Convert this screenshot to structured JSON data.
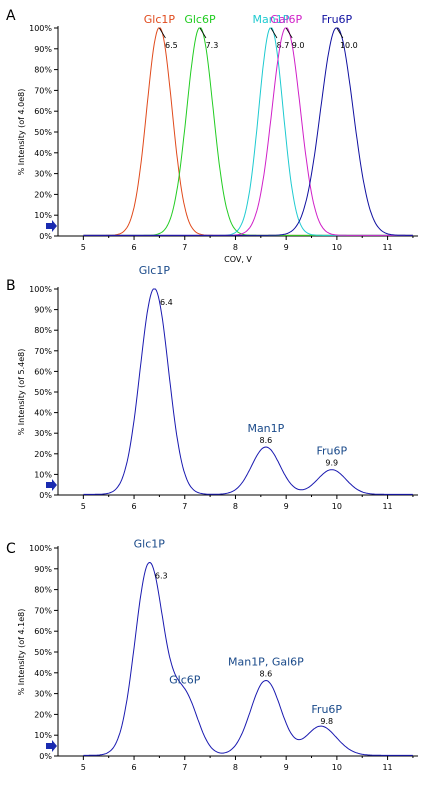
{
  "chart_data": [
    {
      "panel": "A",
      "type": "line",
      "ylabel": "% Intensity (of 4.0e8)",
      "xlabel": "COV, V",
      "xlim": [
        4.5,
        11.6
      ],
      "ylim": [
        0,
        100
      ],
      "xticks": [
        "5",
        "6",
        "7",
        "8",
        "9",
        "10",
        "11"
      ],
      "yticks": [
        "0%",
        "10%",
        "20%",
        "30%",
        "40%",
        "50%",
        "60%",
        "70%",
        "80%",
        "90%",
        "100%"
      ],
      "series": [
        {
          "name": "Glc1P",
          "color": "#e04a1c",
          "peak_x": 6.5,
          "peak_label": "6.5",
          "width": 0.25,
          "height": 100
        },
        {
          "name": "Glc6P",
          "color": "#22cc22",
          "peak_x": 7.3,
          "peak_label": "7.3",
          "width": 0.26,
          "height": 100
        },
        {
          "name": "Man1P",
          "color": "#1ecad0",
          "peak_x": 8.7,
          "peak_label": "8.7",
          "width": 0.24,
          "height": 100
        },
        {
          "name": "Gal6P",
          "color": "#d020c8",
          "peak_x": 9.0,
          "peak_label": "9.0",
          "width": 0.28,
          "height": 100
        },
        {
          "name": "Fru6P",
          "color": "#1010a0",
          "peak_x": 10.0,
          "peak_label": "10.0",
          "width": 0.32,
          "height": 100
        }
      ]
    },
    {
      "panel": "B",
      "type": "line",
      "ylabel": "% Intensity (of 5.4e8)",
      "xlabel": "",
      "xlim": [
        4.5,
        11.6
      ],
      "ylim": [
        0,
        100
      ],
      "xticks": [
        "5",
        "6",
        "7",
        "8",
        "9",
        "10",
        "11"
      ],
      "yticks": [
        "0%",
        "10%",
        "20%",
        "30%",
        "40%",
        "50%",
        "60%",
        "70%",
        "80%",
        "90%",
        "100%"
      ],
      "color": "#1a1ab0",
      "peaks": [
        {
          "name": "Glc1P",
          "x": 6.4,
          "label": "6.4",
          "height": 100,
          "width": 0.28
        },
        {
          "name": "Man1P",
          "x": 8.6,
          "label": "8.6",
          "height": 23,
          "width": 0.28
        },
        {
          "name": "Fru6P",
          "x": 9.9,
          "label": "9.9",
          "height": 12,
          "width": 0.28
        }
      ]
    },
    {
      "panel": "C",
      "type": "line",
      "ylabel": "% Intensity (of 4.1e8)",
      "xlabel": "",
      "xlim": [
        4.5,
        11.6
      ],
      "ylim": [
        0,
        100
      ],
      "xticks": [
        "5",
        "6",
        "7",
        "8",
        "9",
        "10",
        "11"
      ],
      "yticks": [
        "0%",
        "10%",
        "20%",
        "30%",
        "40%",
        "50%",
        "60%",
        "70%",
        "80%",
        "90%",
        "100%"
      ],
      "color": "#1a1ab0",
      "peaks": [
        {
          "name": "Glc1P",
          "x": 6.3,
          "label": "6.3",
          "height": 92,
          "width": 0.28
        },
        {
          "name": "Glc6P",
          "x": 7.0,
          "label": "",
          "height": 28,
          "width": 0.26
        },
        {
          "name": "Man1P, Gal6P",
          "x": 8.6,
          "label": "8.6",
          "height": 36,
          "width": 0.3
        },
        {
          "name": "",
          "x": 9.6,
          "label": "",
          "height": 7,
          "width": 0.25
        },
        {
          "name": "Fru6P",
          "x": 9.8,
          "label": "9.8",
          "height": 8,
          "width": 0.3
        }
      ]
    }
  ]
}
